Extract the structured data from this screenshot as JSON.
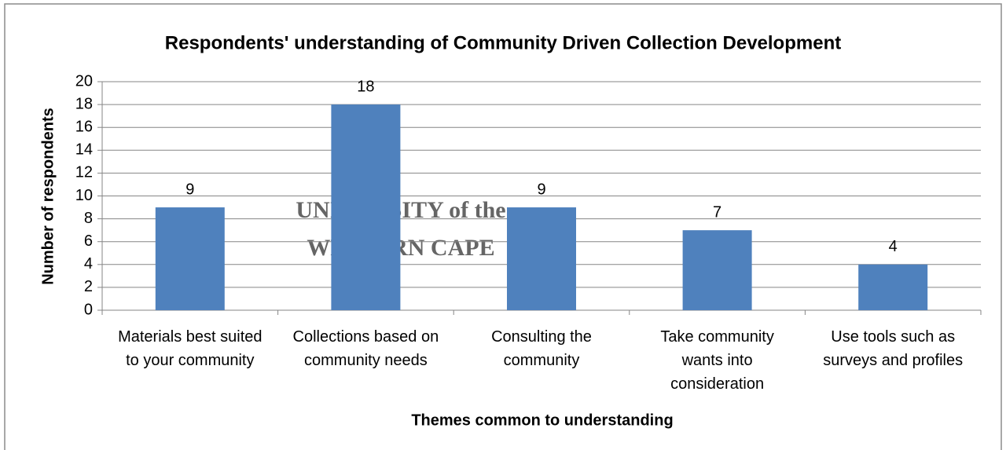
{
  "chart_data": {
    "type": "bar",
    "title": "Respondents' understanding of Community Driven Collection Development",
    "x_label": "Themes common to understanding",
    "y_label": "Number of respondents",
    "categories": [
      "Materials best suited to your community",
      "Collections based on community needs",
      "Consulting the community",
      "Take community wants into consideration",
      "Use tools such as surveys and profiles"
    ],
    "values": [
      9,
      18,
      9,
      7,
      4
    ],
    "color": "#4f81bd",
    "ylim": [
      0,
      20
    ],
    "yticks": [
      0,
      2,
      4,
      6,
      8,
      10,
      12,
      14,
      16,
      18,
      20
    ],
    "grid": true,
    "watermark": [
      "UNIVERSITY of the",
      "WESTERN CAPE"
    ]
  }
}
